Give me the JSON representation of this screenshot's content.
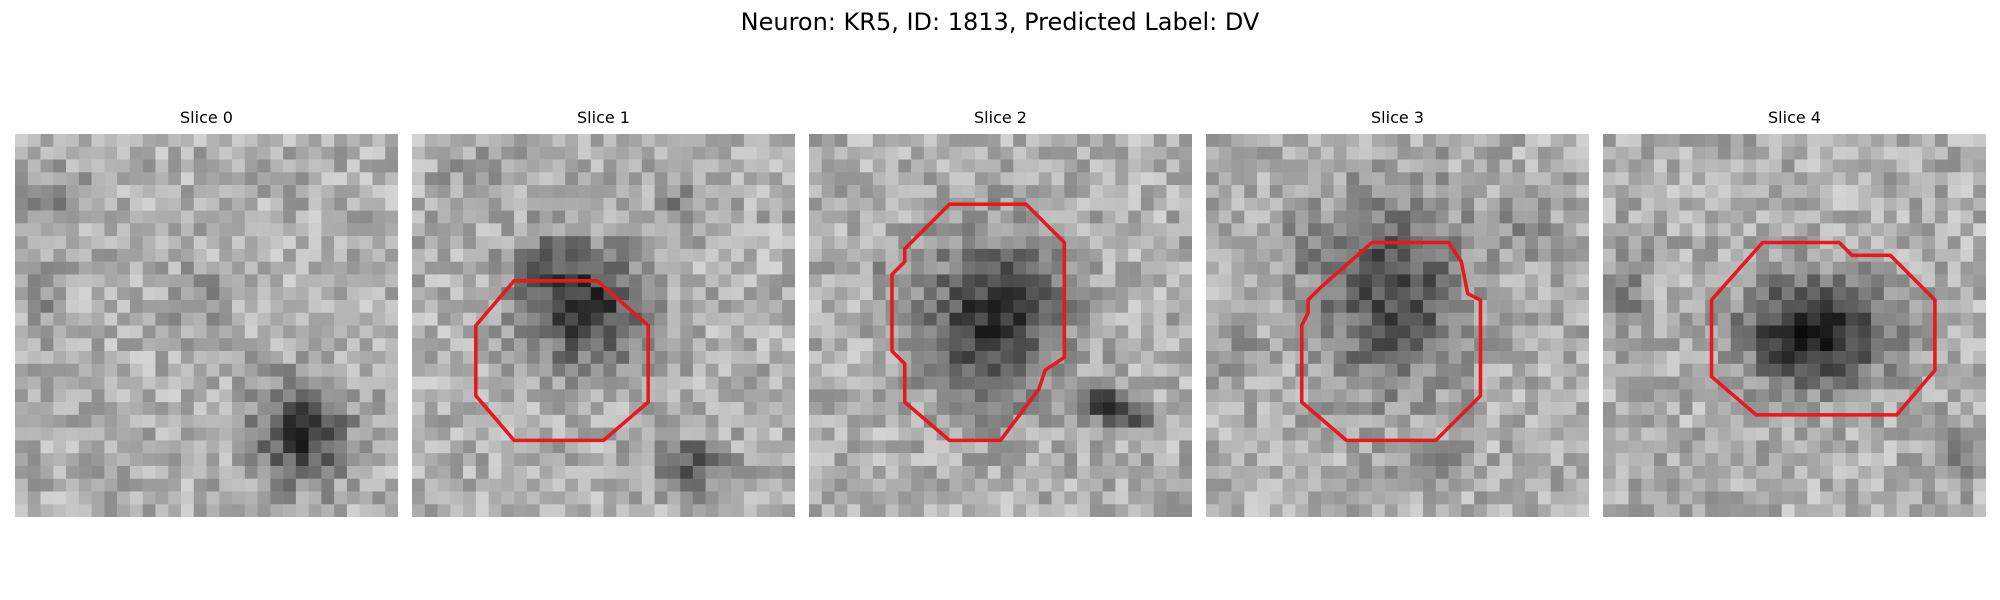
{
  "figure": {
    "title": "Neuron: KR5, ID: 1813, Predicted Label: DV"
  },
  "slices": [
    {
      "title": "Slice 0",
      "has_contour": false
    },
    {
      "title": "Slice 1",
      "has_contour": true
    },
    {
      "title": "Slice 2",
      "has_contour": true
    },
    {
      "title": "Slice 3",
      "has_contour": true
    },
    {
      "title": "Slice 4",
      "has_contour": true
    }
  ],
  "colors": {
    "contour": "#e41a1c",
    "background": "#ffffff"
  }
}
